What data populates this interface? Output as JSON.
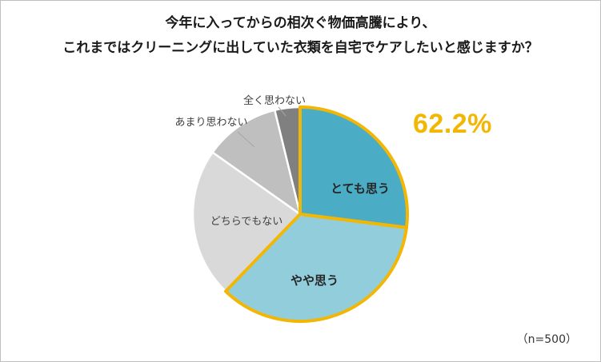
{
  "title_lines": [
    "今年に入ってからの相次ぐ物価高騰により、",
    "これまではクリーニングに出していた衣類を自宅でケアしたいと感じますか？"
  ],
  "highlight_total": "62.2%",
  "note": "（n=500）",
  "colors": {
    "highlight_border": "#f2b705",
    "highlight_text": "#f2b705"
  },
  "chart_data": {
    "type": "pie",
    "title": "今年に入ってからの相次ぐ物価高騰により、これまではクリーニングに出していた衣類を自宅でケアしたいと感じますか？",
    "n": 500,
    "slices": [
      {
        "label": "とても思う",
        "value": 27.0,
        "color": "#4bacc6",
        "highlighted": true
      },
      {
        "label": "やや思う",
        "value": 35.2,
        "color": "#92cddc",
        "highlighted": true
      },
      {
        "label": "どちらでもない",
        "value": 22.6,
        "color": "#d9d9d9",
        "highlighted": false
      },
      {
        "label": "あまり思わない",
        "value": 11.4,
        "color": "#bfbfbf",
        "highlighted": false
      },
      {
        "label": "全く思わない",
        "value": 3.8,
        "color": "#808080",
        "highlighted": false
      }
    ]
  }
}
